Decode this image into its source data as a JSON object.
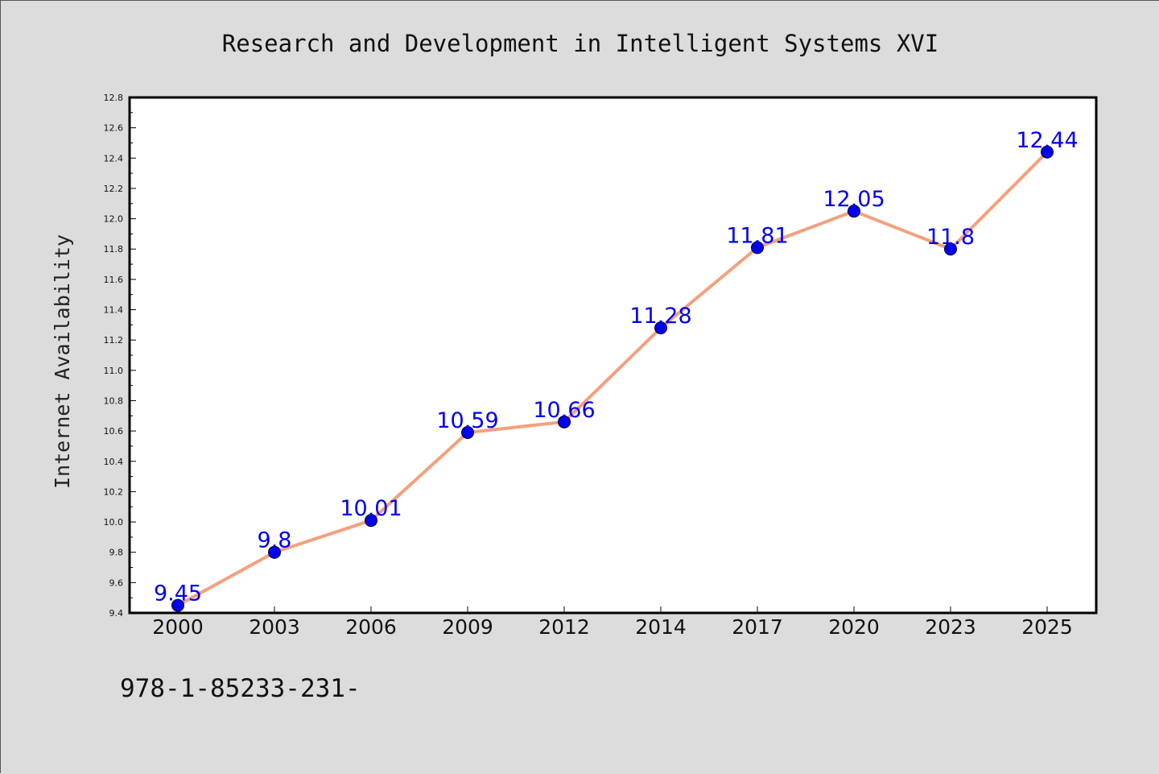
{
  "chart_data": {
    "type": "line",
    "title": "Research and Development in Intelligent Systems XVI",
    "xlabel": "",
    "ylabel": "Internet Availability",
    "categories": [
      "2000",
      "2003",
      "2006",
      "2009",
      "2012",
      "2014",
      "2017",
      "2020",
      "2023",
      "2025"
    ],
    "series": [
      {
        "values": [
          9.45,
          9.8,
          10.01,
          10.59,
          10.66,
          11.28,
          11.81,
          12.05,
          11.8,
          12.44
        ],
        "data_labels": [
          "9.45",
          "9.8",
          "10.01",
          "10.59",
          "10.66",
          "11.28",
          "11.81",
          "12.05",
          "11.8",
          "12.44"
        ]
      }
    ],
    "ylim": [
      9.4,
      12.8
    ],
    "yticks": [
      "9.4",
      "9.6",
      "9.8",
      "10.0",
      "10.2",
      "10.4",
      "10.6",
      "10.8",
      "11.0",
      "11.2",
      "11.4",
      "11.6",
      "11.8",
      "12.0",
      "12.2",
      "12.4",
      "12.6",
      "12.8"
    ],
    "grid": false,
    "legend": "none"
  },
  "footer_text": "978-1-85233-231-",
  "colors": {
    "background": "#dcdcdc",
    "plot_background": "#ffffff",
    "line": "#f4a07e",
    "marker": "#0000ee",
    "data_label": "#0000ee"
  }
}
